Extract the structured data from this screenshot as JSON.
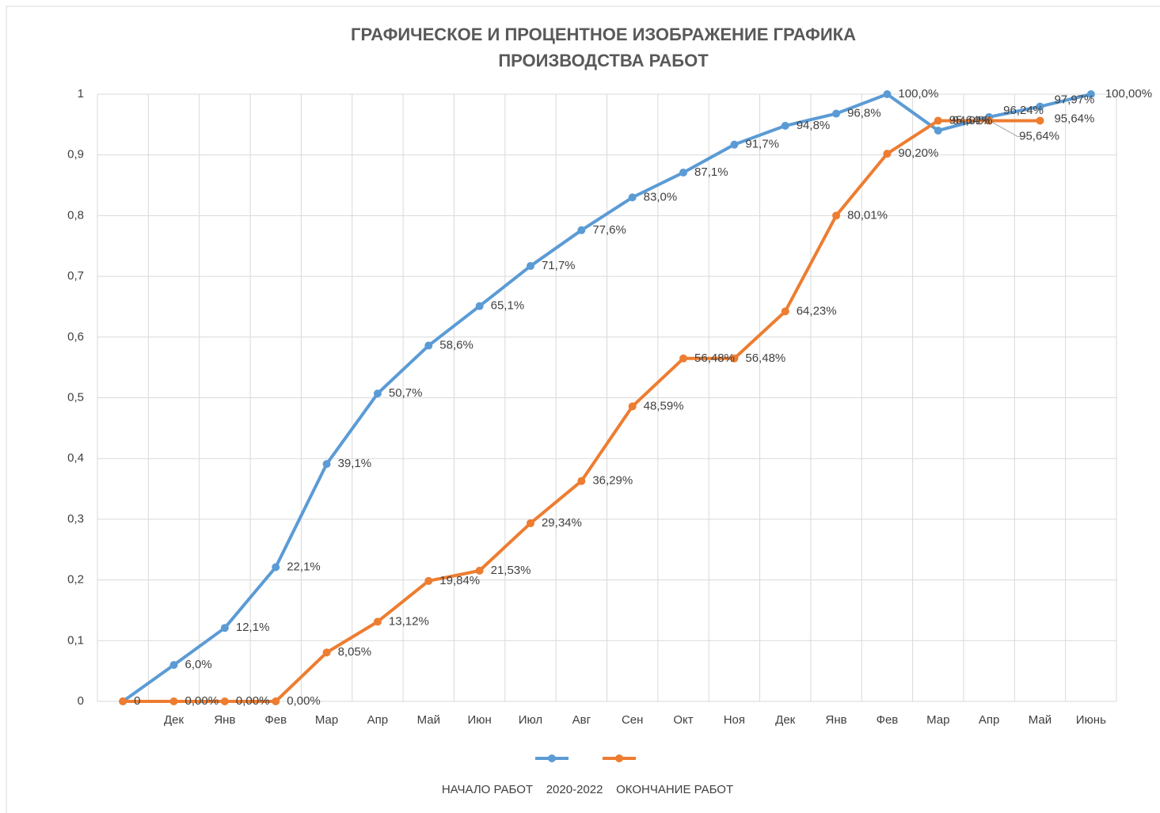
{
  "chart_data": {
    "type": "line",
    "title": [
      "ГРАФИЧЕСКОЕ И ПРОЦЕНТНОЕ ИЗОБРАЖЕНИЕ ГРАФИКА",
      "ПРОИЗВОДСТВА РАБОТ"
    ],
    "x_label": "НАЧАЛО РАБОТ    2020-2022    ОКОНЧАНИЕ РАБОТ",
    "categories": [
      null,
      "Дек",
      "Янв",
      "Фев",
      "Мар",
      "Апр",
      "Май",
      "Июн",
      "Июл",
      "Авг",
      "Сен",
      "Окт",
      "Ноя",
      "Дек",
      "Янв",
      "Фев",
      "Мар",
      "Апр",
      "Май",
      "Июнь"
    ],
    "series": [
      {
        "color": "#5b9bd5",
        "values": [
          0,
          0.06,
          0.121,
          0.221,
          0.391,
          0.507,
          0.586,
          0.651,
          0.717,
          0.776,
          0.83,
          0.871,
          0.917,
          0.948,
          0.968,
          1.0,
          0.9401,
          0.9624,
          0.9797,
          1.0
        ],
        "value_labels": [
          null,
          "6,0%",
          "12,1%",
          "22,1%",
          "39,1%",
          "50,7%",
          "58,6%",
          "65,1%",
          "71,7%",
          "77,6%",
          "83,0%",
          "87,1%",
          "91,7%",
          "94,8%",
          "96,8%",
          "100,0%",
          "94,01%",
          "96,24%",
          "97,97%",
          "100,00%"
        ]
      },
      {
        "color": "#ed7d31",
        "values": [
          0,
          0,
          0,
          0,
          0.0805,
          0.1312,
          0.1984,
          0.2153,
          0.2934,
          0.3629,
          0.4859,
          0.5648,
          0.5648,
          0.6423,
          0.8001,
          0.902,
          0.9564,
          0.9564,
          0.9564,
          null
        ],
        "value_labels": [
          "0",
          "0,00%",
          "0,00%",
          "0,00%",
          "8,05%",
          "13,12%",
          "19,84%",
          "21,53%",
          "29,34%",
          "36,29%",
          "48,59%",
          "56,48%",
          "56,48%",
          "64,23%",
          "80,01%",
          "90,20%",
          "95,64%",
          "95,64%",
          "95,64%",
          null
        ]
      }
    ],
    "ylim": [
      0,
      1
    ],
    "yticks": [
      0,
      {
        "value": 0.1,
        "label": "0,1"
      },
      {
        "value": 0.2,
        "label": "0,2"
      },
      {
        "value": 0.3,
        "label": "0,3"
      },
      {
        "value": 0.4,
        "label": "0,4"
      },
      {
        "value": 0.5,
        "label": "0,5"
      },
      {
        "value": 0.6,
        "label": "0,6"
      },
      {
        "value": 0.7,
        "label": "0,7"
      },
      {
        "value": 0.8,
        "label": "0,8"
      },
      {
        "value": 0.9,
        "label": "0,9"
      },
      1
    ],
    "grid": true
  }
}
